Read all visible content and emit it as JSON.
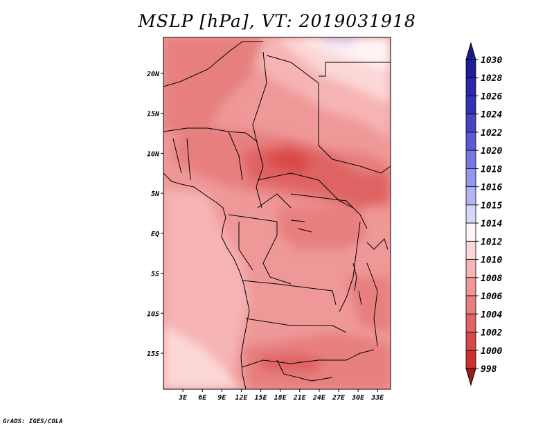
{
  "title": "MSLP [hPa], VT: 2019031918",
  "credit": "GrADS: IGES/COLA",
  "map": {
    "lon_range": [
      0,
      35
    ],
    "lat_range": [
      -19.5,
      24.5
    ],
    "x_ticks": [
      {
        "value": 3,
        "label": "3E"
      },
      {
        "value": 6,
        "label": "6E"
      },
      {
        "value": 9,
        "label": "9E"
      },
      {
        "value": 12,
        "label": "12E"
      },
      {
        "value": 15,
        "label": "15E"
      },
      {
        "value": 18,
        "label": "18E"
      },
      {
        "value": 21,
        "label": "21E"
      },
      {
        "value": 24,
        "label": "24E"
      },
      {
        "value": 27,
        "label": "27E"
      },
      {
        "value": 30,
        "label": "30E"
      },
      {
        "value": 33,
        "label": "33E"
      }
    ],
    "y_ticks": [
      {
        "value": 20,
        "label": "20N"
      },
      {
        "value": 15,
        "label": "15N"
      },
      {
        "value": 10,
        "label": "10N"
      },
      {
        "value": 5,
        "label": "5N"
      },
      {
        "value": 0,
        "label": "EQ"
      },
      {
        "value": -5,
        "label": "5S"
      },
      {
        "value": -10,
        "label": "10S"
      },
      {
        "value": -15,
        "label": "15S"
      }
    ]
  },
  "legend": {
    "levels": [
      {
        "label": "1030",
        "color": "#1e1e96"
      },
      {
        "label": "1028",
        "color": "#2828a8"
      },
      {
        "label": "1026",
        "color": "#3232b4"
      },
      {
        "label": "1024",
        "color": "#4646c3"
      },
      {
        "label": "1022",
        "color": "#5a5ad2"
      },
      {
        "label": "1020",
        "color": "#7878e1"
      },
      {
        "label": "1018",
        "color": "#9696ec"
      },
      {
        "label": "1016",
        "color": "#b4b4f5"
      },
      {
        "label": "1015",
        "color": "#d7d7fa"
      },
      {
        "label": "1014",
        "color": "#fff5f5"
      },
      {
        "label": "1012",
        "color": "#fcd7d7"
      },
      {
        "label": "1010",
        "color": "#f6b4b4"
      },
      {
        "label": "1008",
        "color": "#ef9898"
      },
      {
        "label": "1006",
        "color": "#e77f7f"
      },
      {
        "label": "1004",
        "color": "#e06464"
      },
      {
        "label": "1002",
        "color": "#d94848"
      },
      {
        "label": "1000",
        "color": "#cc3232"
      },
      {
        "label": "998",
        "color": "#b42020"
      }
    ],
    "top_arrow_color": "#1c1c8c",
    "bottom_arrow_color": "#a01a1a"
  }
}
